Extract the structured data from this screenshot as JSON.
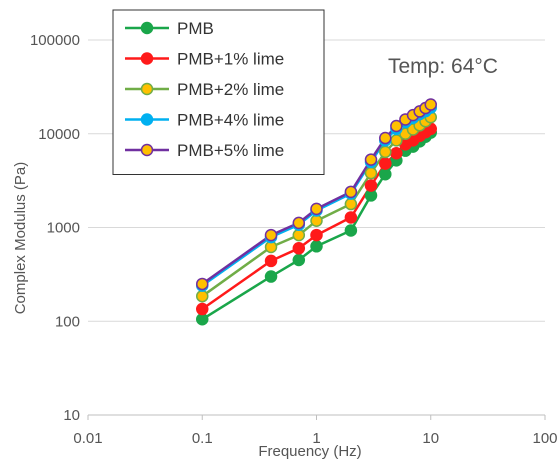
{
  "chart_data": {
    "type": "line",
    "xscale": "log",
    "yscale": "log",
    "xlabel": "Frequency (Hz)",
    "ylabel": "Complex Modulus (Pa)",
    "xlim": [
      0.01,
      100
    ],
    "ylim": [
      10,
      100000
    ],
    "x_ticks": [
      "0.01",
      "0.1",
      "1",
      "10",
      "100"
    ],
    "y_ticks": [
      "10",
      "100",
      "1000",
      "10000",
      "100000"
    ],
    "grid": "horizontal major gridlines",
    "legend_position": "top-left",
    "annotation": "Temp: 64°C",
    "x": [
      0.1,
      0.4,
      0.7,
      1.0,
      2.0,
      3.0,
      4.0,
      5.0,
      6.0,
      7.0,
      8.0,
      9.0,
      10.0
    ],
    "series": [
      {
        "name": "PMB",
        "color": "#1aa64a",
        "values": [
          105,
          300,
          450,
          630,
          930,
          2200,
          3700,
          5200,
          6600,
          7300,
          8300,
          9300,
          10300
        ]
      },
      {
        "name": "PMB+1% lime",
        "color": "#ff1a1a",
        "values": [
          135,
          440,
          600,
          830,
          1280,
          2800,
          4800,
          6200,
          7700,
          8500,
          9500,
          10400,
          11300
        ]
      },
      {
        "name": "PMB+2% lime",
        "color": "#70ad47",
        "values": [
          185,
          620,
          830,
          1180,
          1780,
          3800,
          6400,
          8500,
          10000,
          11100,
          12300,
          13600,
          15000
        ]
      },
      {
        "name": "PMB+4% lime",
        "color": "#00b0f0",
        "values": [
          240,
          790,
          1070,
          1520,
          2300,
          5000,
          8500,
          11300,
          13300,
          14800,
          16200,
          17400,
          19000
        ]
      },
      {
        "name": "PMB+5% lime",
        "color": "#7030a0",
        "values": [
          250,
          830,
          1120,
          1580,
          2400,
          5300,
          9000,
          12100,
          14200,
          15800,
          17300,
          18800,
          20500
        ]
      }
    ],
    "marker_fill": {
      "PMB+2% lime": "#ffc000",
      "PMB+4% lime": "#00b0f0",
      "PMB+5% lime": "#ffc000"
    }
  }
}
